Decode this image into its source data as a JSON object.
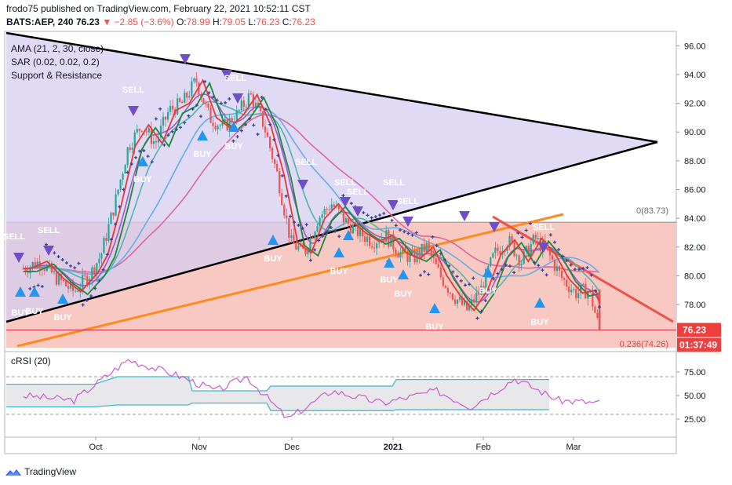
{
  "header": {
    "publisher": "frodo75 published on TradingView.com, February 22, 2021 10:52:11 CST",
    "symbol": "BATS:AEP, 240",
    "last": "76.23",
    "change": "−2.85 (−3.6%)",
    "open_label": "O:",
    "open": "78.99",
    "high_label": "H:",
    "high": "79.05",
    "low_label": "L:",
    "low": "76.23",
    "close_label": "C:",
    "close": "76.23"
  },
  "indicators": {
    "ama": "AMA (21, 2, 30, close)",
    "sar": "SAR (0.02, 0.02, 0.2)",
    "sr": "Support & Resistance"
  },
  "price_axis": {
    "ticks": [
      "96.00",
      "94.00",
      "92.00",
      "90.00",
      "88.00",
      "86.00",
      "84.00",
      "82.00",
      "80.00",
      "78.00"
    ],
    "last_price": "76.23",
    "countdown": "01:37:49"
  },
  "fib": {
    "level0": "0(83.73)",
    "level236": "0.236(74.26)"
  },
  "signals": {
    "sell": "SELL",
    "buy": "BUY"
  },
  "rsi": {
    "label": "cRSI (20)",
    "ticks": [
      "75.00",
      "50.00",
      "25.00"
    ]
  },
  "time_axis": {
    "ticks": [
      "Oct",
      "Nov",
      "Dec",
      "2021",
      "Feb",
      "Mar"
    ]
  },
  "footer": {
    "brand": "TradingView"
  },
  "colors": {
    "up": "#26a69a",
    "down": "#ef5350",
    "wedge_fill": "#d6cdf0",
    "support_fill": "#f8c5c0",
    "orange_trend": "#ff8a1e",
    "red_trend": "#f05046",
    "sar": "#3a3f9e",
    "sell_marker": "#6f4fc9",
    "buy_marker": "#2196f3",
    "ma_blue": "#64aee8",
    "ma_pink": "#e0659a",
    "ma_teal": "#4db6ac",
    "ma_purple": "#a05ac8",
    "rsi_line": "#cc5ad0",
    "rsi_band": "#3fb8d0",
    "axis_text": "#131722"
  },
  "chart_data": {
    "type": "candlestick",
    "title": "BATS:AEP, 240",
    "y_range": [
      75.0,
      97.0
    ],
    "x_range": [
      "2021-09-01",
      "2021-03-15"
    ],
    "fib_levels": [
      {
        "ratio": 0,
        "price": 83.73
      },
      {
        "ratio": 0.236,
        "price": 74.26
      }
    ],
    "last_price": 76.23,
    "ohlc_last": {
      "open": 78.99,
      "high": 79.05,
      "low": 76.23,
      "close": 76.23
    },
    "price_path": [
      {
        "date": "Sep 05",
        "close": 80.5
      },
      {
        "date": "Sep 10",
        "close": 81.0
      },
      {
        "date": "Sep 15",
        "close": 79.8
      },
      {
        "date": "Sep 20",
        "close": 78.9
      },
      {
        "date": "Sep 25",
        "close": 80.2
      },
      {
        "date": "Sep 28",
        "close": 81.5
      },
      {
        "date": "Oct 02",
        "close": 85.0
      },
      {
        "date": "Oct 06",
        "close": 89.0
      },
      {
        "date": "Oct 10",
        "close": 90.5
      },
      {
        "date": "Oct 14",
        "close": 89.2
      },
      {
        "date": "Oct 18",
        "close": 91.5
      },
      {
        "date": "Oct 22",
        "close": 92.0
      },
      {
        "date": "Oct 26",
        "close": 93.6
      },
      {
        "date": "Oct 30",
        "close": 91.0
      },
      {
        "date": "Nov 03",
        "close": 90.3
      },
      {
        "date": "Nov 07",
        "close": 91.2
      },
      {
        "date": "Nov 11",
        "close": 92.6
      },
      {
        "date": "Nov 15",
        "close": 90.5
      },
      {
        "date": "Nov 19",
        "close": 87.0
      },
      {
        "date": "Nov 23",
        "close": 82.3
      },
      {
        "date": "Nov 27",
        "close": 81.6
      },
      {
        "date": "Dec 01",
        "close": 84.0
      },
      {
        "date": "Dec 05",
        "close": 85.0
      },
      {
        "date": "Dec 09",
        "close": 83.8
      },
      {
        "date": "Dec 13",
        "close": 83.0
      },
      {
        "date": "Dec 17",
        "close": 82.4
      },
      {
        "date": "Dec 21",
        "close": 82.8
      },
      {
        "date": "Dec 25",
        "close": 81.6
      },
      {
        "date": "Dec 29",
        "close": 81.2
      },
      {
        "date": "Jan 02",
        "close": 82.0
      },
      {
        "date": "Jan 06",
        "close": 80.0
      },
      {
        "date": "Jan 10",
        "close": 78.6
      },
      {
        "date": "Jan 14",
        "close": 77.6
      },
      {
        "date": "Jan 18",
        "close": 79.0
      },
      {
        "date": "Jan 22",
        "close": 81.5
      },
      {
        "date": "Jan 26",
        "close": 82.5
      },
      {
        "date": "Jan 30",
        "close": 81.0
      },
      {
        "date": "Feb 03",
        "close": 82.6
      },
      {
        "date": "Feb 07",
        "close": 81.5
      },
      {
        "date": "Feb 11",
        "close": 79.8
      },
      {
        "date": "Feb 15",
        "close": 78.8
      },
      {
        "date": "Feb 19",
        "close": 79.0
      },
      {
        "date": "Feb 22",
        "close": 76.23
      }
    ],
    "rsi_series": [
      {
        "date": "Sep 05",
        "value": 50
      },
      {
        "date": "Sep 20",
        "value": 45
      },
      {
        "date": "Oct 06",
        "value": 88
      },
      {
        "date": "Oct 20",
        "value": 72
      },
      {
        "date": "Nov 01",
        "value": 55
      },
      {
        "date": "Nov 10",
        "value": 70
      },
      {
        "date": "Nov 22",
        "value": 25
      },
      {
        "date": "Dec 05",
        "value": 55
      },
      {
        "date": "Dec 20",
        "value": 42
      },
      {
        "date": "Jan 05",
        "value": 55
      },
      {
        "date": "Jan 15",
        "value": 38
      },
      {
        "date": "Jan 28",
        "value": 68
      },
      {
        "date": "Feb 10",
        "value": 45
      },
      {
        "date": "Feb 22",
        "value": 42
      }
    ],
    "rsi_range": [
      10,
      95
    ],
    "rsi_levels": [
      70,
      30
    ],
    "grid": false
  }
}
